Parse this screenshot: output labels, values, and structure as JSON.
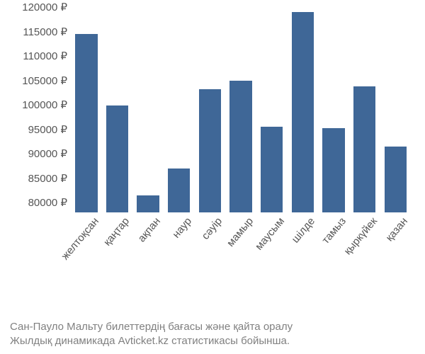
{
  "chart": {
    "type": "bar",
    "background_color": "#ffffff",
    "bar_color": "#3f6797",
    "axis_text_color": "#555555",
    "caption_color": "#808080",
    "tick_fontsize": 15,
    "label_fontsize": 15,
    "caption_fontsize": 15,
    "currency_suffix": " ₽",
    "ylim": [
      78000,
      120000
    ],
    "ytick_step": 5000,
    "yticks": [
      {
        "value": 80000,
        "label": "80000 ₽"
      },
      {
        "value": 85000,
        "label": "85000 ₽"
      },
      {
        "value": 90000,
        "label": "90000 ₽"
      },
      {
        "value": 95000,
        "label": "95000 ₽"
      },
      {
        "value": 100000,
        "label": "100000 ₽"
      },
      {
        "value": 105000,
        "label": "105000 ₽"
      },
      {
        "value": 110000,
        "label": "110000 ₽"
      },
      {
        "value": 115000,
        "label": "115000 ₽"
      },
      {
        "value": 120000,
        "label": "120000 ₽"
      }
    ],
    "categories": [
      "желтоқсан",
      "қаңтар",
      "ақпан",
      "наур",
      "сәуір",
      "мамыр",
      "маусым",
      "шілде",
      "тамыз",
      "қыркүйек",
      "қазан"
    ],
    "values": [
      114500,
      99800,
      81500,
      87000,
      103200,
      105000,
      95500,
      119000,
      95200,
      103800,
      91500
    ],
    "bar_width": 0.72,
    "xlabel_rotation_deg": -50
  },
  "caption": {
    "line1": "Сан-Пауло Мальту билеттердің бағасы және қайта оралу",
    "line2": "Жылдық динамикада Avticket.kz статистикасы бойынша."
  }
}
